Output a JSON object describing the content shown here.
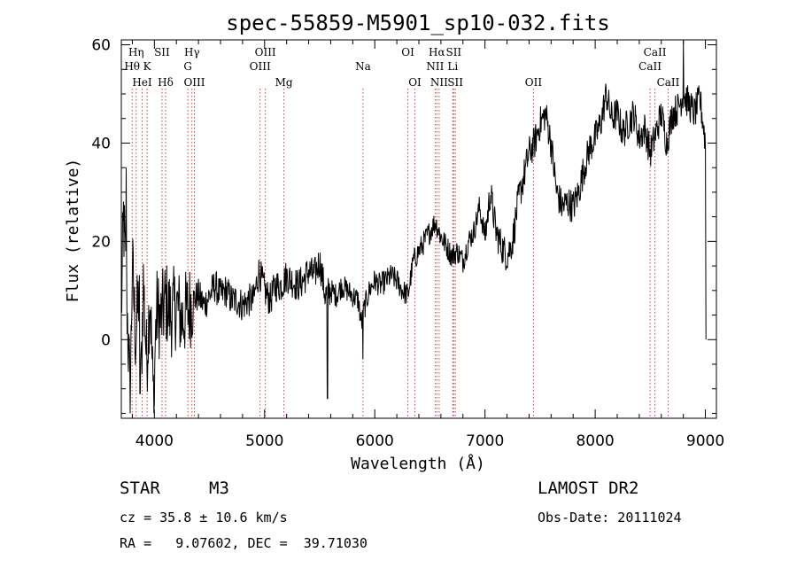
{
  "chart_data": {
    "type": "line",
    "title": "spec-55859-M5901_sp10-032.fits",
    "xlabel": "Wavelength (Å)",
    "ylabel": "Flux (relative)",
    "xlim": [
      3700,
      9100
    ],
    "ylim": [
      -16,
      61
    ],
    "xticks": [
      4000,
      5000,
      6000,
      7000,
      8000,
      9000
    ],
    "yticks": [
      0,
      20,
      40,
      60
    ],
    "line_color": "#000000",
    "marker_color": "#d04040",
    "spectral_lines": [
      {
        "wavelength": 3835,
        "label": "Hη",
        "row": 0
      },
      {
        "wavelength": 3798,
        "label": "Hθ",
        "row": 1
      },
      {
        "wavelength": 3889,
        "label": "HeI",
        "row": 2
      },
      {
        "wavelength": 4069,
        "label": "SII",
        "row": 0
      },
      {
        "wavelength": 3934,
        "label": "K",
        "row": 1
      },
      {
        "wavelength": 4102,
        "label": "Hδ",
        "row": 2
      },
      {
        "wavelength": 4341,
        "label": "Hγ",
        "row": 0
      },
      {
        "wavelength": 4304,
        "label": "G",
        "row": 1
      },
      {
        "wavelength": 4363,
        "label": "OIII",
        "row": 2
      },
      {
        "wavelength": 5007,
        "label": "OIII",
        "row": 0
      },
      {
        "wavelength": 4959,
        "label": "OIII",
        "row": 1
      },
      {
        "wavelength": 5175,
        "label": "Mg",
        "row": 2
      },
      {
        "wavelength": 5893,
        "label": "Na",
        "row": 1
      },
      {
        "wavelength": 6300,
        "label": "OI",
        "row": 0
      },
      {
        "wavelength": 6364,
        "label": "OI",
        "row": 2
      },
      {
        "wavelength": 6563,
        "label": "Hα",
        "row": 0
      },
      {
        "wavelength": 6716,
        "label": "SII",
        "row": 0
      },
      {
        "wavelength": 6548,
        "label": "NII",
        "row": 1
      },
      {
        "wavelength": 6708,
        "label": "Li",
        "row": 1
      },
      {
        "wavelength": 6584,
        "label": "NII",
        "row": 2
      },
      {
        "wavelength": 6731,
        "label": "SII",
        "row": 2
      },
      {
        "wavelength": 7440,
        "label": "OII",
        "row": 2
      },
      {
        "wavelength": 8542,
        "label": "CaII",
        "row": 0
      },
      {
        "wavelength": 8498,
        "label": "CaII",
        "row": 1
      },
      {
        "wavelength": 8662,
        "label": "CaII",
        "row": 2
      }
    ],
    "spectrum_anchors": [
      [
        3700,
        5
      ],
      [
        3720,
        25
      ],
      [
        3750,
        8
      ],
      [
        3780,
        -12
      ],
      [
        3800,
        15
      ],
      [
        3830,
        0
      ],
      [
        3860,
        10
      ],
      [
        3880,
        -8
      ],
      [
        3900,
        12
      ],
      [
        3930,
        -5
      ],
      [
        3960,
        10
      ],
      [
        3990,
        -12
      ],
      [
        4020,
        6
      ],
      [
        4060,
        4
      ],
      [
        4100,
        8
      ],
      [
        4150,
        5
      ],
      [
        4200,
        7
      ],
      [
        4250,
        4
      ],
      [
        4300,
        6
      ],
      [
        4350,
        8
      ],
      [
        4400,
        9
      ],
      [
        4450,
        7
      ],
      [
        4500,
        9
      ],
      [
        4550,
        11
      ],
      [
        4600,
        9
      ],
      [
        4650,
        10
      ],
      [
        4700,
        8
      ],
      [
        4750,
        8
      ],
      [
        4800,
        7
      ],
      [
        4850,
        8
      ],
      [
        4900,
        8
      ],
      [
        4950,
        14
      ],
      [
        5000,
        10
      ],
      [
        5050,
        8
      ],
      [
        5100,
        11
      ],
      [
        5150,
        11
      ],
      [
        5200,
        13
      ],
      [
        5250,
        12
      ],
      [
        5300,
        11
      ],
      [
        5350,
        12
      ],
      [
        5400,
        14
      ],
      [
        5450,
        13
      ],
      [
        5500,
        16
      ],
      [
        5550,
        9
      ],
      [
        5600,
        10
      ],
      [
        5650,
        9
      ],
      [
        5700,
        11
      ],
      [
        5750,
        10
      ],
      [
        5800,
        9
      ],
      [
        5850,
        8
      ],
      [
        5880,
        3
      ],
      [
        5900,
        6
      ],
      [
        5950,
        10
      ],
      [
        6000,
        12
      ],
      [
        6050,
        11
      ],
      [
        6100,
        12
      ],
      [
        6150,
        13
      ],
      [
        6200,
        12
      ],
      [
        6250,
        10
      ],
      [
        6300,
        9
      ],
      [
        6350,
        16
      ],
      [
        6400,
        18
      ],
      [
        6450,
        20
      ],
      [
        6500,
        22
      ],
      [
        6550,
        24
      ],
      [
        6600,
        21
      ],
      [
        6650,
        19
      ],
      [
        6700,
        17
      ],
      [
        6750,
        18
      ],
      [
        6800,
        16
      ],
      [
        6850,
        20
      ],
      [
        6900,
        22
      ],
      [
        6950,
        27
      ],
      [
        7000,
        21
      ],
      [
        7050,
        30
      ],
      [
        7100,
        22
      ],
      [
        7150,
        19
      ],
      [
        7200,
        17
      ],
      [
        7250,
        20
      ],
      [
        7300,
        28
      ],
      [
        7350,
        33
      ],
      [
        7400,
        38
      ],
      [
        7450,
        40
      ],
      [
        7500,
        44
      ],
      [
        7550,
        46
      ],
      [
        7600,
        40
      ],
      [
        7650,
        30
      ],
      [
        7700,
        27
      ],
      [
        7750,
        28
      ],
      [
        7800,
        27
      ],
      [
        7850,
        30
      ],
      [
        7900,
        35
      ],
      [
        7950,
        39
      ],
      [
        8000,
        41
      ],
      [
        8050,
        44
      ],
      [
        8100,
        50
      ],
      [
        8150,
        45
      ],
      [
        8200,
        46
      ],
      [
        8250,
        42
      ],
      [
        8300,
        44
      ],
      [
        8350,
        46
      ],
      [
        8400,
        41
      ],
      [
        8450,
        43
      ],
      [
        8500,
        38
      ],
      [
        8550,
        42
      ],
      [
        8600,
        46
      ],
      [
        8650,
        40
      ],
      [
        8700,
        46
      ],
      [
        8750,
        47
      ],
      [
        8800,
        50
      ],
      [
        8850,
        48
      ],
      [
        8900,
        46
      ],
      [
        8950,
        49
      ],
      [
        8980,
        44
      ],
      [
        9000,
        40
      ],
      [
        9005,
        0
      ]
    ],
    "spikes": [
      [
        5570,
        -12
      ],
      [
        3743,
        35
      ],
      [
        8800,
        62
      ],
      [
        5893,
        -4
      ],
      [
        4000,
        -13
      ],
      [
        3870,
        -11
      ]
    ]
  },
  "info": {
    "object_class": "STAR",
    "subclass": "M3",
    "survey": "LAMOST DR2",
    "redshift": "cz = 35.8 ± 10.6 km/s",
    "obs_date": "Obs-Date: 20111024",
    "coords": "RA =   9.07602, DEC =  39.71030"
  }
}
